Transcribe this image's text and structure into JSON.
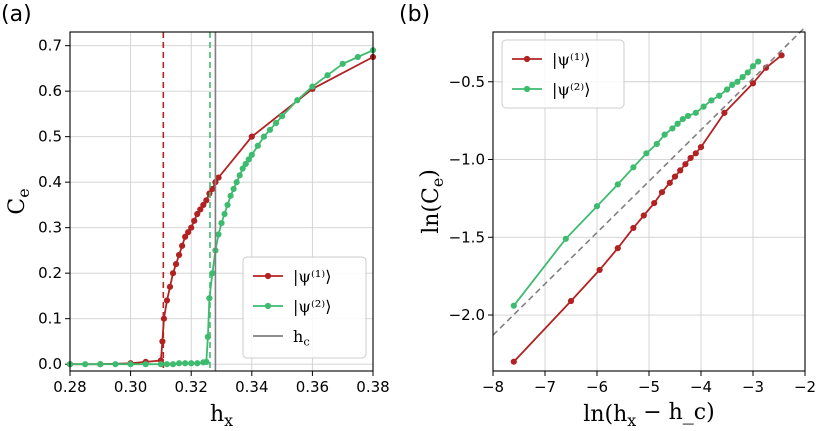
{
  "panels": [
    {
      "label": "(a)"
    },
    {
      "label": "(b)"
    }
  ],
  "colors": {
    "psi1": "#b22222",
    "psi2": "#3dbb6e",
    "hc": "#7f7f7f",
    "fit": "#808080",
    "grid": "#d0d0d0"
  },
  "chart_data": [
    {
      "type": "line",
      "panel": "(a)",
      "xlabel": "h_x",
      "ylabel": "C_e",
      "xlim": [
        0.28,
        0.38
      ],
      "ylim": [
        -0.015,
        0.73
      ],
      "xticks": [
        0.28,
        0.3,
        0.32,
        0.34,
        0.36,
        0.38
      ],
      "xtick_labels": [
        "0.28",
        "0.30",
        "0.32",
        "0.34",
        "0.36",
        "0.38"
      ],
      "yticks": [
        0.0,
        0.1,
        0.2,
        0.3,
        0.4,
        0.5,
        0.6,
        0.7
      ],
      "ytick_labels": [
        "0.0",
        "0.1",
        "0.2",
        "0.3",
        "0.4",
        "0.5",
        "0.6",
        "0.7"
      ],
      "grid": true,
      "legend_position": "bottom-right",
      "series": [
        {
          "name": "|ψ⁽¹⁾⟩",
          "color": "#b22222",
          "x": [
            0.28,
            0.29,
            0.3,
            0.305,
            0.31,
            0.3105,
            0.311,
            0.312,
            0.313,
            0.314,
            0.315,
            0.316,
            0.317,
            0.318,
            0.319,
            0.32,
            0.321,
            0.322,
            0.323,
            0.324,
            0.325,
            0.326,
            0.327,
            0.328,
            0.329,
            0.34,
            0.36,
            0.38
          ],
          "y": [
            0.0,
            0.0,
            0.002,
            0.005,
            0.008,
            0.05,
            0.1,
            0.14,
            0.17,
            0.2,
            0.22,
            0.24,
            0.26,
            0.28,
            0.29,
            0.3,
            0.315,
            0.33,
            0.34,
            0.35,
            0.36,
            0.375,
            0.385,
            0.4,
            0.41,
            0.5,
            0.605,
            0.675
          ],
          "vline_x": 0.3108,
          "vline_style": "dashed"
        },
        {
          "name": "|ψ⁽²⁾⟩",
          "color": "#3dbb6e",
          "x": [
            0.28,
            0.285,
            0.29,
            0.295,
            0.3,
            0.305,
            0.31,
            0.312,
            0.314,
            0.316,
            0.318,
            0.32,
            0.322,
            0.324,
            0.325,
            0.3255,
            0.326,
            0.327,
            0.328,
            0.329,
            0.33,
            0.331,
            0.332,
            0.333,
            0.334,
            0.335,
            0.336,
            0.337,
            0.338,
            0.339,
            0.34,
            0.342,
            0.344,
            0.346,
            0.348,
            0.35,
            0.355,
            0.36,
            0.365,
            0.37,
            0.375,
            0.38
          ],
          "y": [
            0.0,
            0.0,
            0.0,
            0.0,
            0.0,
            0.0,
            0.0,
            0.0,
            0.0,
            0.002,
            0.002,
            0.002,
            0.002,
            0.004,
            0.005,
            0.06,
            0.145,
            0.2,
            0.25,
            0.285,
            0.31,
            0.33,
            0.35,
            0.37,
            0.385,
            0.4,
            0.415,
            0.43,
            0.44,
            0.45,
            0.46,
            0.48,
            0.5,
            0.515,
            0.53,
            0.545,
            0.58,
            0.61,
            0.635,
            0.66,
            0.675,
            0.69
          ],
          "vline_x": 0.3262,
          "vline_style": "dashed"
        },
        {
          "name": "h_c",
          "color": "#7f7f7f",
          "vline_x": 0.328,
          "vline_style": "solid"
        }
      ]
    },
    {
      "type": "line",
      "panel": "(b)",
      "xlabel": "ln(h_x − h_c)",
      "ylabel": "ln(C_e)",
      "xlim": [
        -8,
        -2
      ],
      "ylim": [
        -2.36,
        -0.18
      ],
      "xticks": [
        -8,
        -7,
        -6,
        -5,
        -4,
        -3,
        -2
      ],
      "xtick_labels": [
        "−8",
        "−7",
        "−6",
        "−5",
        "−4",
        "−3",
        "−2"
      ],
      "yticks": [
        -2.0,
        -1.5,
        -1.0,
        -0.5
      ],
      "ytick_labels": [
        "−2.0",
        "−1.5",
        "−1.0",
        "−0.5"
      ],
      "grid": true,
      "legend_position": "top-left",
      "series": [
        {
          "name": "|ψ⁽¹⁾⟩",
          "color": "#b22222",
          "x": [
            -7.6,
            -6.5,
            -5.95,
            -5.6,
            -5.3,
            -5.1,
            -4.9,
            -4.75,
            -4.6,
            -4.5,
            -4.4,
            -4.3,
            -4.2,
            -4.1,
            -4.0,
            -3.55,
            -3.0,
            -2.75,
            -2.45
          ],
          "y": [
            -2.3,
            -1.91,
            -1.71,
            -1.57,
            -1.44,
            -1.36,
            -1.28,
            -1.21,
            -1.15,
            -1.11,
            -1.07,
            -1.03,
            -0.99,
            -0.96,
            -0.92,
            -0.7,
            -0.51,
            -0.41,
            -0.33
          ]
        },
        {
          "name": "|ψ⁽²⁾⟩",
          "color": "#3dbb6e",
          "x": [
            -7.6,
            -6.6,
            -6.0,
            -5.6,
            -5.3,
            -5.05,
            -4.85,
            -4.7,
            -4.55,
            -4.45,
            -4.35,
            -4.25,
            -4.1,
            -3.95,
            -3.8,
            -3.65,
            -3.5,
            -3.4,
            -3.3,
            -3.2,
            -3.1,
            -3.0,
            -2.9
          ],
          "y": [
            -1.94,
            -1.51,
            -1.3,
            -1.16,
            -1.05,
            -0.96,
            -0.9,
            -0.84,
            -0.8,
            -0.77,
            -0.74,
            -0.72,
            -0.7,
            -0.66,
            -0.62,
            -0.59,
            -0.55,
            -0.52,
            -0.5,
            -0.47,
            -0.44,
            -0.4,
            -0.37
          ]
        },
        {
          "name": "fit",
          "color": "#808080",
          "style": "dashed",
          "x": [
            -8.0,
            -2.0
          ],
          "y": [
            -2.13,
            -0.15
          ]
        }
      ]
    }
  ]
}
